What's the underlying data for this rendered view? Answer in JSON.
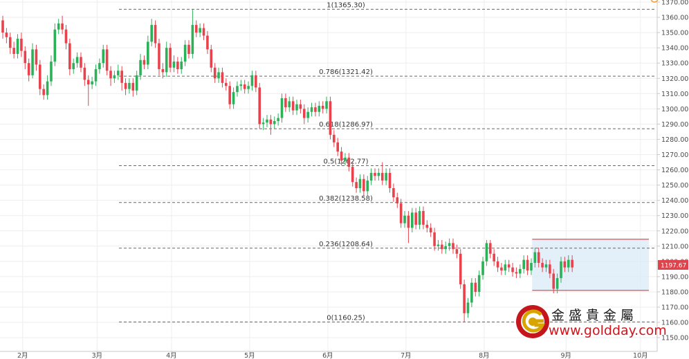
{
  "colors": {
    "up": "#2db158",
    "down": "#e8434d",
    "fib_line": "#666666",
    "grid": "#eeeeee",
    "box_fill": "#d9e9f7",
    "box_border": "#e84b4b",
    "price_tag": "#e0434c",
    "axis_text": "#4a4a4a"
  },
  "watermark": {
    "title": "金盛貴金屬",
    "url": "www.goldday.com"
  },
  "chart_data": {
    "type": "candlestick",
    "y_axis": {
      "min": 1150,
      "max": 1370,
      "step": 10,
      "tick_labels": [
        "1150.00",
        "1160.00",
        "1170.00",
        "1180.00",
        "1190.00",
        "1200.00",
        "1210.00",
        "1220.00",
        "1230.00",
        "1240.00",
        "1250.00",
        "1260.00",
        "1270.00",
        "1280.00",
        "1290.00",
        "1300.00",
        "1310.00",
        "1320.00",
        "1330.00",
        "1340.00",
        "1350.00",
        "1360.00",
        "1370.00"
      ],
      "side": "right"
    },
    "x_axis": {
      "tick_labels": [
        "2月",
        "3月",
        "4月",
        "5月",
        "6月",
        "7月",
        "8月",
        "9月",
        "10月"
      ],
      "month_start_index": [
        2,
        22,
        42,
        63,
        84,
        105,
        126,
        148,
        168
      ]
    },
    "last_price": 1197.67,
    "last_price_label": "1197.67",
    "fibonacci": [
      {
        "label": "1(1365.30)",
        "value": 1365.3
      },
      {
        "label": "0.786(1321.42)",
        "value": 1321.42
      },
      {
        "label": "0.618(1286.97)",
        "value": 1286.97
      },
      {
        "label": "0.5(1262.77)",
        "value": 1262.77
      },
      {
        "label": "0.382(1238.58)",
        "value": 1238.58
      },
      {
        "label": "0.236(1208.64)",
        "value": 1208.64
      },
      {
        "label": "0(1160.25)",
        "value": 1160.25
      }
    ],
    "range_box": {
      "top": 1214.5,
      "bottom": 1181,
      "start_index": 143
    },
    "candles": [
      [
        1358,
        1350,
        1361,
        1346
      ],
      [
        1350,
        1347,
        1353,
        1343
      ],
      [
        1347,
        1340,
        1350,
        1336
      ],
      [
        1340,
        1336,
        1344,
        1333
      ],
      [
        1336,
        1346,
        1349,
        1333
      ],
      [
        1346,
        1338,
        1350,
        1334
      ],
      [
        1338,
        1330,
        1341,
        1326
      ],
      [
        1330,
        1322,
        1333,
        1318
      ],
      [
        1322,
        1339,
        1343,
        1320
      ],
      [
        1339,
        1329,
        1342,
        1325
      ],
      [
        1329,
        1313,
        1332,
        1309
      ],
      [
        1313,
        1309,
        1316,
        1306
      ],
      [
        1309,
        1318,
        1322,
        1306
      ],
      [
        1318,
        1331,
        1335,
        1315
      ],
      [
        1331,
        1352,
        1356,
        1328
      ],
      [
        1352,
        1356,
        1359,
        1349
      ],
      [
        1356,
        1352,
        1361,
        1349
      ],
      [
        1352,
        1343,
        1355,
        1339
      ],
      [
        1343,
        1326,
        1346,
        1322
      ],
      [
        1326,
        1330,
        1333,
        1323
      ],
      [
        1330,
        1334,
        1337,
        1327
      ],
      [
        1334,
        1327,
        1337,
        1324
      ],
      [
        1327,
        1319,
        1330,
        1315
      ],
      [
        1319,
        1316,
        1322,
        1302
      ],
      [
        1316,
        1318,
        1321,
        1313
      ],
      [
        1318,
        1326,
        1329,
        1315
      ],
      [
        1326,
        1330,
        1333,
        1323
      ],
      [
        1330,
        1339,
        1342,
        1327
      ],
      [
        1339,
        1325,
        1342,
        1322
      ],
      [
        1325,
        1320,
        1328,
        1315
      ],
      [
        1320,
        1322,
        1325,
        1317
      ],
      [
        1322,
        1325,
        1329,
        1319
      ],
      [
        1325,
        1317,
        1328,
        1312
      ],
      [
        1317,
        1313,
        1320,
        1309
      ],
      [
        1313,
        1317,
        1320,
        1310
      ],
      [
        1317,
        1312,
        1320,
        1308
      ],
      [
        1312,
        1322,
        1325,
        1309
      ],
      [
        1322,
        1332,
        1336,
        1319
      ],
      [
        1332,
        1329,
        1335,
        1326
      ],
      [
        1329,
        1344,
        1348,
        1326
      ],
      [
        1344,
        1355,
        1359,
        1341
      ],
      [
        1355,
        1343,
        1358,
        1340
      ],
      [
        1343,
        1326,
        1346,
        1322
      ],
      [
        1326,
        1324,
        1330,
        1320
      ],
      [
        1324,
        1340,
        1344,
        1321
      ],
      [
        1340,
        1327,
        1343,
        1324
      ],
      [
        1327,
        1331,
        1335,
        1324
      ],
      [
        1331,
        1326,
        1334,
        1323
      ],
      [
        1326,
        1331,
        1334,
        1323
      ],
      [
        1331,
        1342,
        1345,
        1328
      ],
      [
        1342,
        1336,
        1345,
        1333
      ],
      [
        1336,
        1355,
        1365,
        1333
      ],
      [
        1355,
        1350,
        1358,
        1347
      ],
      [
        1350,
        1353,
        1356,
        1347
      ],
      [
        1353,
        1348,
        1356,
        1345
      ],
      [
        1348,
        1339,
        1351,
        1336
      ],
      [
        1339,
        1327,
        1342,
        1324
      ],
      [
        1327,
        1320,
        1330,
        1317
      ],
      [
        1320,
        1324,
        1327,
        1317
      ],
      [
        1324,
        1317,
        1327,
        1314
      ],
      [
        1317,
        1315,
        1320,
        1312
      ],
      [
        1315,
        1303,
        1318,
        1300
      ],
      [
        1303,
        1311,
        1314,
        1300
      ],
      [
        1311,
        1315,
        1318,
        1308
      ],
      [
        1315,
        1316,
        1319,
        1312
      ],
      [
        1316,
        1313,
        1319,
        1310
      ],
      [
        1313,
        1315,
        1318,
        1310
      ],
      [
        1315,
        1322,
        1325,
        1312
      ],
      [
        1322,
        1314,
        1325,
        1311
      ],
      [
        1314,
        1290,
        1317,
        1287
      ],
      [
        1290,
        1291,
        1294,
        1286
      ],
      [
        1291,
        1293,
        1296,
        1288
      ],
      [
        1293,
        1290,
        1296,
        1283
      ],
      [
        1290,
        1292,
        1295,
        1287
      ],
      [
        1292,
        1294,
        1297,
        1289
      ],
      [
        1294,
        1307,
        1310,
        1291
      ],
      [
        1307,
        1301,
        1310,
        1298
      ],
      [
        1301,
        1305,
        1308,
        1298
      ],
      [
        1305,
        1299,
        1308,
        1296
      ],
      [
        1299,
        1303,
        1306,
        1296
      ],
      [
        1303,
        1300,
        1306,
        1297
      ],
      [
        1300,
        1294,
        1303,
        1290
      ],
      [
        1294,
        1298,
        1301,
        1291
      ],
      [
        1298,
        1301,
        1304,
        1295
      ],
      [
        1301,
        1298,
        1304,
        1295
      ],
      [
        1298,
        1302,
        1305,
        1295
      ],
      [
        1302,
        1300,
        1305,
        1297
      ],
      [
        1300,
        1305,
        1308,
        1297
      ],
      [
        1305,
        1283,
        1308,
        1280
      ],
      [
        1283,
        1278,
        1286,
        1275
      ],
      [
        1278,
        1272,
        1281,
        1269
      ],
      [
        1272,
        1266,
        1275,
        1263
      ],
      [
        1266,
        1268,
        1271,
        1263
      ],
      [
        1268,
        1262,
        1271,
        1259
      ],
      [
        1262,
        1252,
        1265,
        1249
      ],
      [
        1252,
        1248,
        1255,
        1245
      ],
      [
        1248,
        1254,
        1257,
        1245
      ],
      [
        1254,
        1246,
        1257,
        1243
      ],
      [
        1246,
        1253,
        1256,
        1243
      ],
      [
        1253,
        1258,
        1261,
        1250
      ],
      [
        1258,
        1256,
        1261,
        1253
      ],
      [
        1256,
        1258,
        1261,
        1253
      ],
      [
        1258,
        1253,
        1265,
        1250
      ],
      [
        1253,
        1258,
        1261,
        1250
      ],
      [
        1258,
        1248,
        1261,
        1245
      ],
      [
        1248,
        1242,
        1251,
        1239
      ],
      [
        1242,
        1238,
        1245,
        1235
      ],
      [
        1238,
        1225,
        1241,
        1222
      ],
      [
        1225,
        1230,
        1233,
        1222
      ],
      [
        1230,
        1222,
        1233,
        1212
      ],
      [
        1222,
        1232,
        1235,
        1219
      ],
      [
        1232,
        1224,
        1235,
        1221
      ],
      [
        1224,
        1233,
        1236,
        1221
      ],
      [
        1233,
        1224,
        1236,
        1221
      ],
      [
        1224,
        1222,
        1227,
        1219
      ],
      [
        1222,
        1219,
        1225,
        1216
      ],
      [
        1219,
        1210,
        1222,
        1207
      ],
      [
        1210,
        1211,
        1214,
        1207
      ],
      [
        1211,
        1208,
        1214,
        1205
      ],
      [
        1208,
        1210,
        1213,
        1205
      ],
      [
        1210,
        1212,
        1215,
        1207
      ],
      [
        1212,
        1208,
        1215,
        1205
      ],
      [
        1208,
        1205,
        1211,
        1202
      ],
      [
        1205,
        1185,
        1208,
        1182
      ],
      [
        1185,
        1166,
        1188,
        1160
      ],
      [
        1166,
        1173,
        1176,
        1163
      ],
      [
        1173,
        1186,
        1189,
        1170
      ],
      [
        1186,
        1180,
        1189,
        1177
      ],
      [
        1180,
        1191,
        1194,
        1177
      ],
      [
        1191,
        1200,
        1203,
        1188
      ],
      [
        1200,
        1212,
        1214,
        1197
      ],
      [
        1212,
        1205,
        1214,
        1202
      ],
      [
        1205,
        1200,
        1208,
        1197
      ],
      [
        1200,
        1196,
        1203,
        1193
      ],
      [
        1196,
        1194,
        1199,
        1191
      ],
      [
        1194,
        1198,
        1201,
        1191
      ],
      [
        1198,
        1196,
        1201,
        1193
      ],
      [
        1196,
        1193,
        1199,
        1190
      ],
      [
        1193,
        1192,
        1196,
        1189
      ],
      [
        1192,
        1195,
        1198,
        1189
      ],
      [
        1195,
        1201,
        1204,
        1192
      ],
      [
        1201,
        1194,
        1204,
        1191
      ],
      [
        1194,
        1199,
        1202,
        1191
      ],
      [
        1199,
        1206,
        1209,
        1196
      ],
      [
        1206,
        1199,
        1209,
        1196
      ],
      [
        1199,
        1196,
        1202,
        1193
      ],
      [
        1196,
        1198,
        1201,
        1193
      ],
      [
        1198,
        1192,
        1201,
        1189
      ],
      [
        1192,
        1182,
        1195,
        1179
      ],
      [
        1182,
        1189,
        1192,
        1179
      ],
      [
        1189,
        1200,
        1203,
        1186
      ],
      [
        1200,
        1196,
        1203,
        1193
      ],
      [
        1196,
        1201,
        1204,
        1193
      ],
      [
        1201,
        1196,
        1204,
        1193
      ]
    ]
  }
}
